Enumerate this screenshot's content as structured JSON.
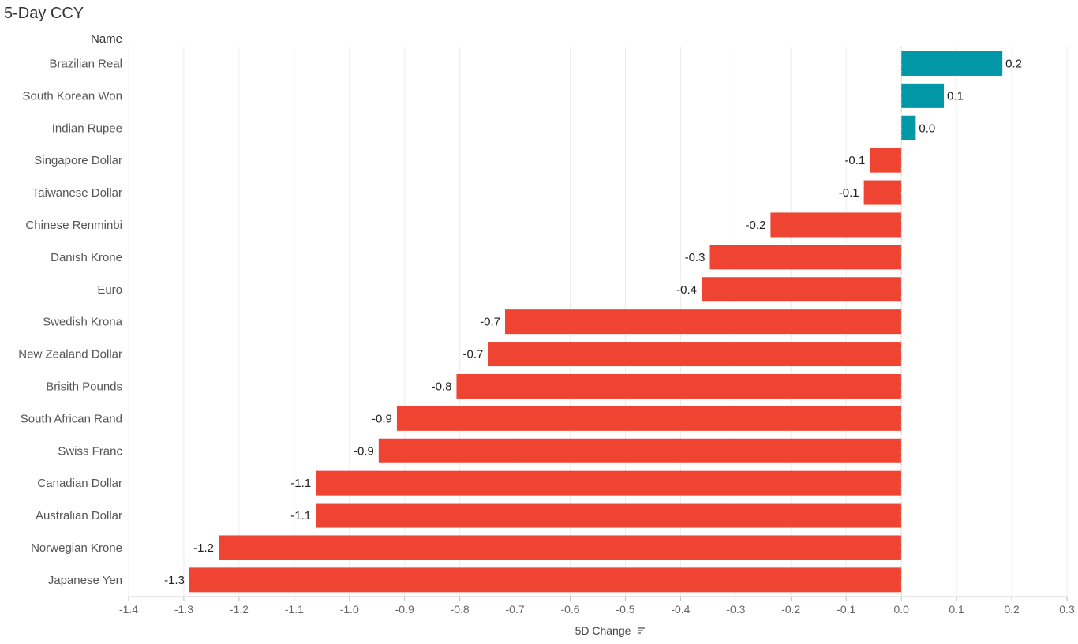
{
  "title": "5-Day CCY",
  "row_header": "Name",
  "chart_data": {
    "type": "bar",
    "orientation": "horizontal",
    "title": "5-Day CCY",
    "xlabel": "5D Change",
    "ylabel": "Name",
    "xlim": [
      -1.4,
      0.3
    ],
    "xticks": [
      -1.4,
      -1.3,
      -1.2,
      -1.1,
      -1.0,
      -0.9,
      -0.8,
      -0.7,
      -0.6,
      -0.5,
      -0.4,
      -0.3,
      -0.2,
      -0.1,
      0.0,
      0.1,
      0.2,
      0.3
    ],
    "grid": true,
    "categories": [
      "Brazilian Real",
      "South Korean Won",
      "Indian Rupee",
      "Singapore Dollar",
      "Taiwanese Dollar",
      "Chinese Renminbi",
      "Danish Krone",
      "Euro",
      "Swedish Krona",
      "New Zealand Dollar",
      "Brisith Pounds",
      "South African Rand",
      "Swiss Franc",
      "Canadian Dollar",
      "Australian Dollar",
      "Norwegian Krone",
      "Japanese Yen"
    ],
    "values": [
      0.183,
      0.077,
      0.026,
      -0.057,
      -0.068,
      -0.237,
      -0.347,
      -0.362,
      -0.718,
      -0.749,
      -0.806,
      -0.914,
      -0.947,
      -1.061,
      -1.061,
      -1.237,
      -1.29
    ],
    "labels": [
      "0.2",
      "0.1",
      "0.0",
      "-0.1",
      "-0.1",
      "-0.2",
      "-0.3",
      "-0.4",
      "-0.7",
      "-0.7",
      "-0.8",
      "-0.9",
      "-0.9",
      "-1.1",
      "-1.1",
      "-1.2",
      "-1.3"
    ],
    "colors": {
      "positive": "#0097a7",
      "negative": "#f04433"
    }
  }
}
